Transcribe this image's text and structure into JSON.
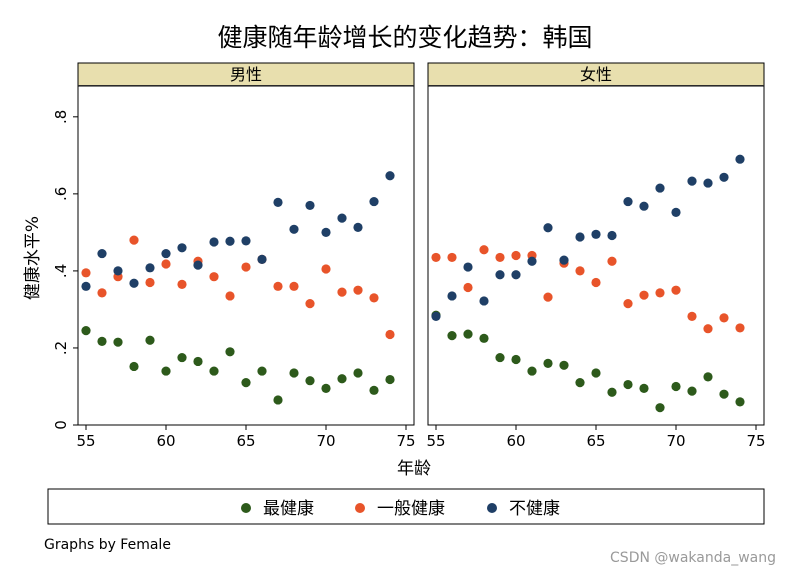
{
  "chart_data": {
    "type": "scatter",
    "title": "健康随年龄增长的变化趋势：韩国",
    "xlabel": "年龄",
    "ylabel": "健康水平%",
    "xlim": [
      54.5,
      75.5
    ],
    "ylim": [
      0,
      0.88
    ],
    "x_ticks": [
      "55",
      "60",
      "65",
      "70",
      "75"
    ],
    "x_tick_values": [
      55,
      60,
      65,
      70,
      75
    ],
    "y_ticks": [
      "0",
      ".2",
      ".4",
      ".6",
      ".8"
    ],
    "y_tick_values": [
      0,
      0.2,
      0.4,
      0.6,
      0.8
    ],
    "grid": false,
    "legend_position": "bottom",
    "note": "Graphs by Female",
    "watermark": "CSDN @wakanda_wang",
    "colors": {
      "green": "#2d5a1b",
      "orange": "#e8542a",
      "navy": "#1f3f66",
      "strip": "#e8dfae"
    },
    "panels": [
      {
        "title": "男性",
        "series": [
          {
            "name": "最健康",
            "color": "#2d5a1b",
            "x": [
              55,
              56,
              57,
              58,
              59,
              60,
              61,
              62,
              63,
              64,
              65,
              66,
              67,
              68,
              69,
              70,
              71,
              72,
              73,
              74
            ],
            "y": [
              0.245,
              0.217,
              0.215,
              0.152,
              0.22,
              0.14,
              0.175,
              0.165,
              0.14,
              0.19,
              0.11,
              0.14,
              0.065,
              0.135,
              0.115,
              0.095,
              0.12,
              0.135,
              0.09,
              0.118
            ]
          },
          {
            "name": "一般健康",
            "color": "#e8542a",
            "x": [
              55,
              56,
              57,
              58,
              59,
              60,
              61,
              62,
              63,
              64,
              65,
              66,
              67,
              68,
              69,
              70,
              71,
              72,
              73,
              74
            ],
            "y": [
              0.395,
              0.343,
              0.385,
              0.48,
              0.37,
              0.418,
              0.365,
              0.425,
              0.385,
              0.335,
              0.41,
              0.43,
              0.36,
              0.36,
              0.315,
              0.405,
              0.345,
              0.35,
              0.33,
              0.235
            ]
          },
          {
            "name": "不健康",
            "color": "#1f3f66",
            "x": [
              55,
              56,
              57,
              58,
              59,
              60,
              61,
              62,
              63,
              64,
              65,
              66,
              67,
              68,
              69,
              70,
              71,
              72,
              73,
              74
            ],
            "y": [
              0.36,
              0.445,
              0.4,
              0.368,
              0.408,
              0.445,
              0.46,
              0.415,
              0.475,
              0.477,
              0.478,
              0.43,
              0.578,
              0.508,
              0.57,
              0.5,
              0.537,
              0.513,
              0.58,
              0.647
            ]
          }
        ]
      },
      {
        "title": "女性",
        "series": [
          {
            "name": "最健康",
            "color": "#2d5a1b",
            "x": [
              55,
              56,
              57,
              58,
              59,
              60,
              61,
              62,
              63,
              64,
              65,
              66,
              67,
              68,
              69,
              70,
              71,
              72,
              73,
              74
            ],
            "y": [
              0.285,
              0.232,
              0.236,
              0.225,
              0.175,
              0.17,
              0.14,
              0.16,
              0.155,
              0.11,
              0.135,
              0.085,
              0.105,
              0.095,
              0.045,
              0.1,
              0.088,
              0.125,
              0.08,
              0.06
            ]
          },
          {
            "name": "一般健康",
            "color": "#e8542a",
            "x": [
              55,
              56,
              57,
              58,
              59,
              60,
              61,
              62,
              63,
              64,
              65,
              66,
              67,
              68,
              69,
              70,
              71,
              72,
              73,
              74
            ],
            "y": [
              0.435,
              0.435,
              0.357,
              0.455,
              0.435,
              0.44,
              0.44,
              0.332,
              0.42,
              0.4,
              0.37,
              0.425,
              0.315,
              0.337,
              0.343,
              0.35,
              0.282,
              0.25,
              0.278,
              0.252
            ]
          },
          {
            "name": "不健康",
            "color": "#1f3f66",
            "x": [
              55,
              56,
              57,
              58,
              59,
              60,
              61,
              62,
              63,
              64,
              65,
              66,
              67,
              68,
              69,
              70,
              71,
              72,
              73,
              74
            ],
            "y": [
              0.282,
              0.335,
              0.41,
              0.322,
              0.39,
              0.39,
              0.425,
              0.512,
              0.428,
              0.488,
              0.495,
              0.492,
              0.58,
              0.568,
              0.615,
              0.552,
              0.633,
              0.628,
              0.643,
              0.69
            ]
          }
        ]
      }
    ],
    "legend": [
      {
        "label": "最健康",
        "color": "#2d5a1b"
      },
      {
        "label": "一般健康",
        "color": "#e8542a"
      },
      {
        "label": "不健康",
        "color": "#1f3f66"
      }
    ]
  }
}
